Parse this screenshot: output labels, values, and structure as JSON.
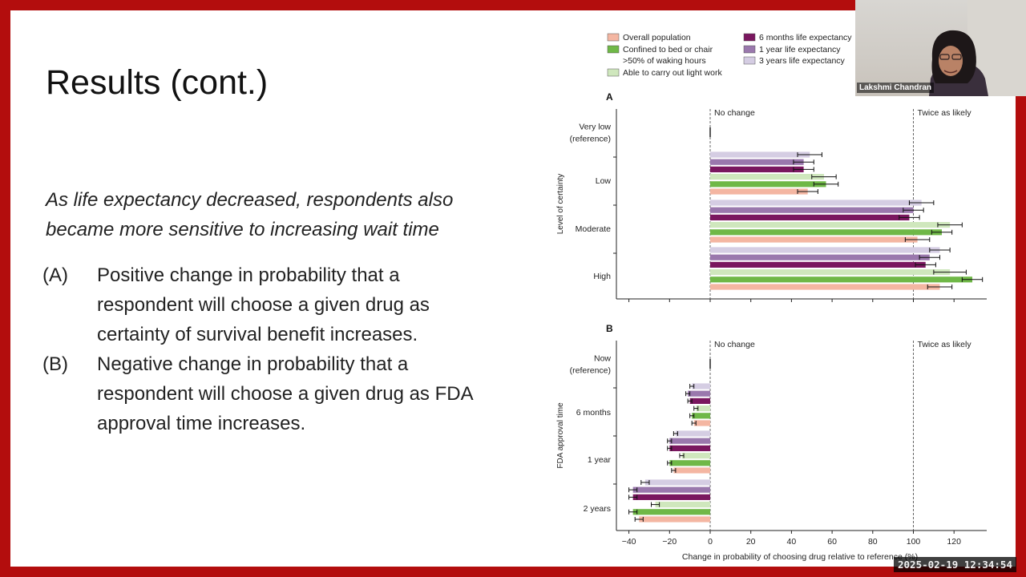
{
  "slide": {
    "title": "Results (cont.)",
    "subtitle": "As life expectancy decreased, respondents also became more sensitive to increasing wait time",
    "items": [
      {
        "label": "(A)",
        "text": "Positive change in probability that a respondent will choose a given drug as certainty of survival benefit increases."
      },
      {
        "label": "(B)",
        "text": "Negative change in probability that a respondent will choose a given drug as FDA approval time increases."
      }
    ]
  },
  "webcam": {
    "name": "Lakshmi Chandran"
  },
  "timestamp": "2025-02-19  12:34:54",
  "chart_data": {
    "type": "bar",
    "orientation": "horizontal",
    "xlabel": "Change in probability of choosing drug relative to reference (%)",
    "xlim": [
      -45,
      140
    ],
    "xticks": [
      -40,
      -20,
      0,
      20,
      40,
      60,
      80,
      100,
      120,
      140
    ],
    "reference_lines": [
      {
        "x": 0,
        "label": "No change"
      },
      {
        "x": 100,
        "label": "Twice as likely"
      }
    ],
    "legend_placement": "top",
    "series": [
      {
        "name": "Overall population",
        "color": "#f4b6a2"
      },
      {
        "name": "Confined to bed or chair >50% of waking hours",
        "color": "#6fb847"
      },
      {
        "name": "Able to carry out light work",
        "color": "#cfe7bd"
      },
      {
        "name": "6 months life expectancy",
        "color": "#7a175f"
      },
      {
        "name": "1 year life expectancy",
        "color": "#9a78ad"
      },
      {
        "name": "3 years life expectancy",
        "color": "#d5cde3"
      }
    ],
    "legend": [
      {
        "label": "Overall population",
        "color": "#f4b6a2"
      },
      {
        "label": "Confined to bed or chair",
        "cont": ">50% of waking hours",
        "color": "#6fb847"
      },
      {
        "label": "Able to carry out light work",
        "color": "#cfe7bd"
      },
      {
        "label": "6 months life expectancy",
        "color": "#7a175f"
      },
      {
        "label": "1 year life expectancy",
        "color": "#9a78ad"
      },
      {
        "label": "3 years life expectancy",
        "color": "#d5cde3"
      }
    ],
    "panels": [
      {
        "label": "A",
        "ylabel": "Level of certainty",
        "categories": [
          "Very low (reference)",
          "Low",
          "Moderate",
          "High"
        ],
        "category_lines": [
          [
            "Very low",
            "(reference)"
          ],
          [
            "Low"
          ],
          [
            "Moderate"
          ],
          [
            "High"
          ]
        ],
        "values": [
          [
            0,
            0,
            0,
            0,
            0,
            0
          ],
          [
            48,
            57,
            56,
            46,
            46,
            49
          ],
          [
            102,
            114,
            118,
            98,
            100,
            104
          ],
          [
            113,
            129,
            118,
            106,
            108,
            113
          ]
        ],
        "error": [
          [
            0,
            0,
            0,
            0,
            0,
            0
          ],
          [
            5,
            6,
            6,
            5,
            5,
            6
          ],
          [
            6,
            5,
            6,
            5,
            5,
            6
          ],
          [
            6,
            5,
            8,
            5,
            5,
            5
          ]
        ]
      },
      {
        "label": "B",
        "ylabel": "FDA approval time",
        "categories": [
          "Now (reference)",
          "6 months",
          "1 year",
          "2 years"
        ],
        "category_lines": [
          [
            "Now",
            "(reference)"
          ],
          [
            "6 months"
          ],
          [
            "1 year"
          ],
          [
            "2 years"
          ]
        ],
        "values": [
          [
            0,
            0,
            0,
            0,
            0,
            0
          ],
          [
            -8,
            -9,
            -7,
            -10,
            -11,
            -9
          ],
          [
            -18,
            -20,
            -14,
            -20,
            -20,
            -17
          ],
          [
            -35,
            -38,
            -27,
            -38,
            -38,
            -32
          ]
        ],
        "error": [
          [
            0,
            0,
            0,
            0,
            0,
            0
          ],
          [
            1,
            1,
            1,
            1,
            1,
            1
          ],
          [
            1,
            1,
            1,
            1,
            1,
            1
          ],
          [
            2,
            2,
            2,
            2,
            2,
            2
          ]
        ]
      }
    ]
  }
}
